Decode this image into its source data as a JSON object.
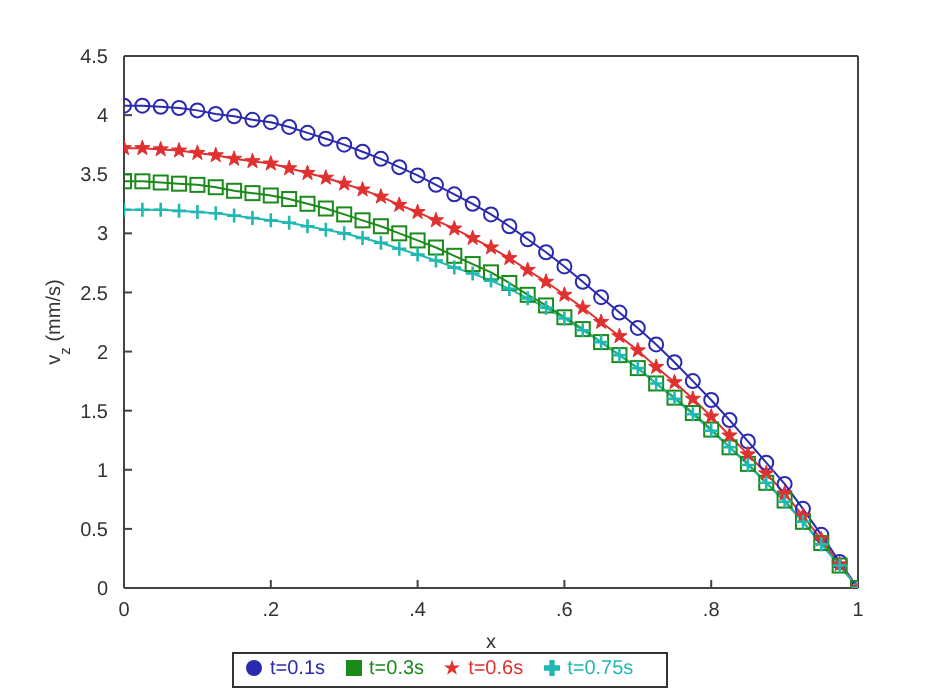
{
  "chart_data": {
    "type": "line",
    "xlabel": "x",
    "ylabel": "v$_{z}$ (mm/s)",
    "x": [
      0,
      0.025,
      0.05,
      0.075,
      0.1,
      0.125,
      0.15,
      0.175,
      0.2,
      0.225,
      0.25,
      0.275,
      0.3,
      0.325,
      0.35,
      0.375,
      0.4,
      0.425,
      0.45,
      0.475,
      0.5,
      0.525,
      0.55,
      0.575,
      0.6,
      0.625,
      0.65,
      0.675,
      0.7,
      0.725,
      0.75,
      0.775,
      0.8,
      0.825,
      0.85,
      0.875,
      0.9,
      0.925,
      0.95,
      0.975,
      1
    ],
    "series": [
      {
        "name": "t=0.1s",
        "color": "#2a2ab0",
        "marker": "circle",
        "values": [
          4.08,
          4.08,
          4.07,
          4.06,
          4.04,
          4.01,
          3.99,
          3.96,
          3.94,
          3.9,
          3.85,
          3.8,
          3.75,
          3.69,
          3.63,
          3.56,
          3.49,
          3.41,
          3.33,
          3.25,
          3.16,
          3.06,
          2.95,
          2.84,
          2.72,
          2.59,
          2.46,
          2.33,
          2.2,
          2.06,
          1.91,
          1.75,
          1.59,
          1.42,
          1.24,
          1.06,
          0.88,
          0.67,
          0.45,
          0.22,
          0
        ]
      },
      {
        "name": "t=0.3s",
        "color": "#1a8a1a",
        "marker": "square",
        "values": [
          3.44,
          3.44,
          3.43,
          3.42,
          3.41,
          3.39,
          3.36,
          3.34,
          3.32,
          3.29,
          3.25,
          3.21,
          3.16,
          3.11,
          3.06,
          3.0,
          2.94,
          2.88,
          2.81,
          2.74,
          2.67,
          2.58,
          2.48,
          2.39,
          2.29,
          2.19,
          2.08,
          1.97,
          1.86,
          1.73,
          1.61,
          1.48,
          1.34,
          1.19,
          1.05,
          0.89,
          0.74,
          0.56,
          0.38,
          0.19,
          0
        ]
      },
      {
        "name": "t=0.6s",
        "color": "#e03030",
        "marker": "star",
        "values": [
          3.72,
          3.72,
          3.71,
          3.7,
          3.68,
          3.66,
          3.63,
          3.61,
          3.59,
          3.55,
          3.51,
          3.47,
          3.42,
          3.37,
          3.31,
          3.24,
          3.18,
          3.11,
          3.04,
          2.96,
          2.88,
          2.79,
          2.69,
          2.59,
          2.48,
          2.37,
          2.25,
          2.13,
          2.01,
          1.87,
          1.74,
          1.6,
          1.45,
          1.29,
          1.13,
          0.97,
          0.8,
          0.61,
          0.41,
          0.2,
          0
        ]
      },
      {
        "name": "t=0.75s",
        "color": "#20b8b0",
        "marker": "cross",
        "values": [
          3.2,
          3.2,
          3.2,
          3.19,
          3.18,
          3.17,
          3.15,
          3.13,
          3.11,
          3.09,
          3.06,
          3.03,
          3.0,
          2.96,
          2.92,
          2.87,
          2.82,
          2.77,
          2.71,
          2.66,
          2.6,
          2.53,
          2.45,
          2.37,
          2.28,
          2.18,
          2.08,
          1.97,
          1.86,
          1.73,
          1.6,
          1.47,
          1.33,
          1.19,
          1.04,
          0.89,
          0.73,
          0.56,
          0.37,
          0.19,
          0
        ]
      }
    ],
    "xlim": [
      0,
      1
    ],
    "xticks": [
      0,
      {
        "value": 0.2,
        "label": ".2"
      },
      {
        "value": 0.4,
        "label": ".4"
      },
      {
        "value": 0.6,
        "label": ".6"
      },
      {
        "value": 0.8,
        "label": ".8"
      },
      1
    ],
    "ylim": [
      0,
      4.5
    ],
    "yticks": [
      0,
      0.5,
      1,
      1.5,
      2,
      2.5,
      3,
      3.5,
      4,
      4.5
    ],
    "legend": "bottom",
    "grid": false,
    "line_style": "solid"
  }
}
